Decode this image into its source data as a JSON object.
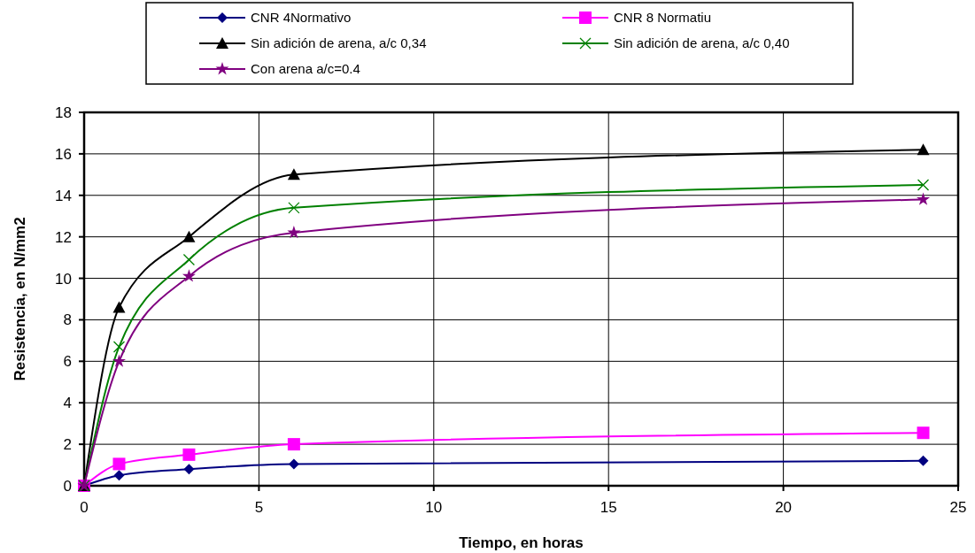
{
  "chart_data": {
    "type": "line",
    "xlabel": "Tiempo, en horas",
    "ylabel": "Resistencia, en N/mm2",
    "x": [
      0,
      1,
      3,
      6,
      24
    ],
    "series": [
      {
        "name": "CNR 4Normativo",
        "color": "#000080",
        "marker": "diamond",
        "values": [
          0,
          0.5,
          0.8,
          1.05,
          1.2
        ]
      },
      {
        "name": "CNR 8 Normatiu",
        "color": "#ff00ff",
        "marker": "square",
        "values": [
          0,
          1.05,
          1.5,
          2.0,
          2.55
        ]
      },
      {
        "name": "Sin adición de arena, a/c 0,34",
        "color": "#000000",
        "marker": "triangle",
        "values": [
          0,
          8.6,
          12.0,
          15.0,
          16.2
        ]
      },
      {
        "name": "Sin adición de arena, a/c 0,40",
        "color": "#008000",
        "marker": "cross",
        "values": [
          0,
          6.7,
          10.9,
          13.4,
          14.5
        ]
      },
      {
        "name": "Con arena a/c=0.4",
        "color": "#800080",
        "marker": "star",
        "values": [
          0,
          6.0,
          10.1,
          12.2,
          13.8
        ]
      }
    ],
    "xlim": [
      0,
      25
    ],
    "xticks": [
      0,
      5,
      10,
      15,
      20,
      25
    ],
    "ylim": [
      0,
      18
    ],
    "yticks": [
      0,
      2,
      4,
      6,
      8,
      10,
      12,
      14,
      16,
      18
    ],
    "grid": true,
    "legend": "top"
  }
}
